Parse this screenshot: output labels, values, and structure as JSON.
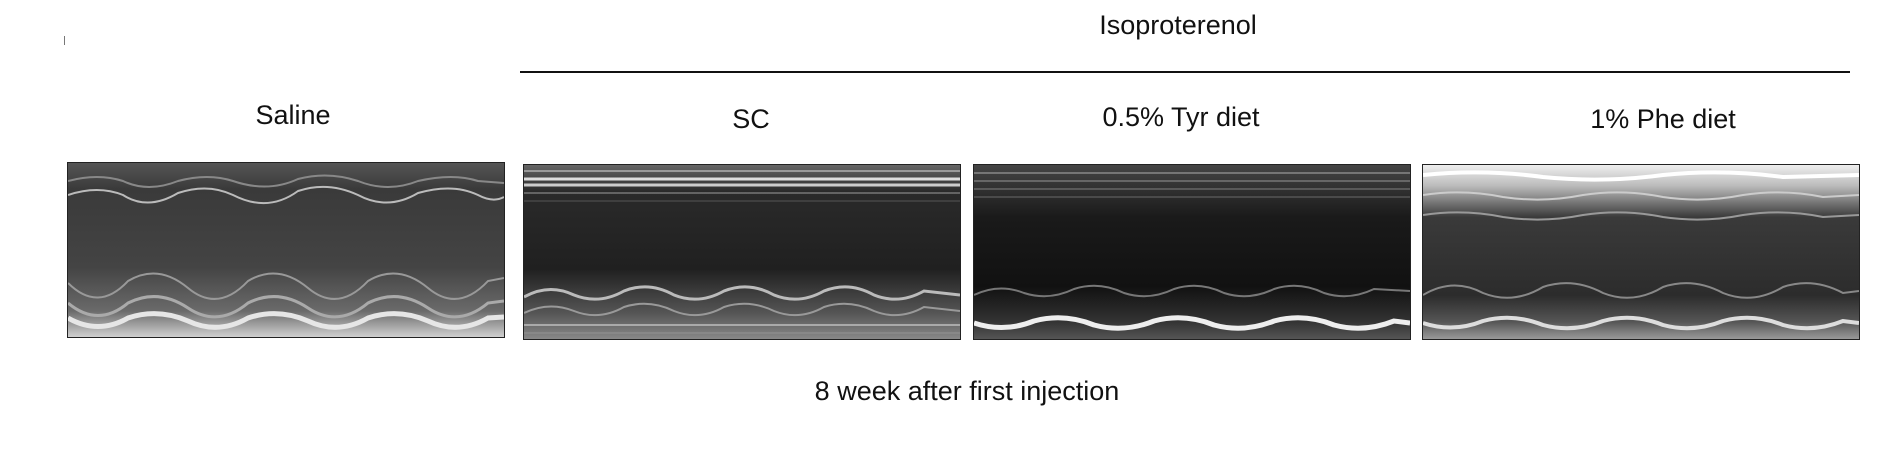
{
  "group_label": "Isoproterenol",
  "footer_label": "8 week after first injection",
  "panels": [
    {
      "title": "Saline",
      "style": "saline"
    },
    {
      "title": "SC",
      "style": "sc"
    },
    {
      "title": "0.5% Tyr diet",
      "style": "tyr"
    },
    {
      "title": "1% Phe diet",
      "style": "phe"
    }
  ]
}
